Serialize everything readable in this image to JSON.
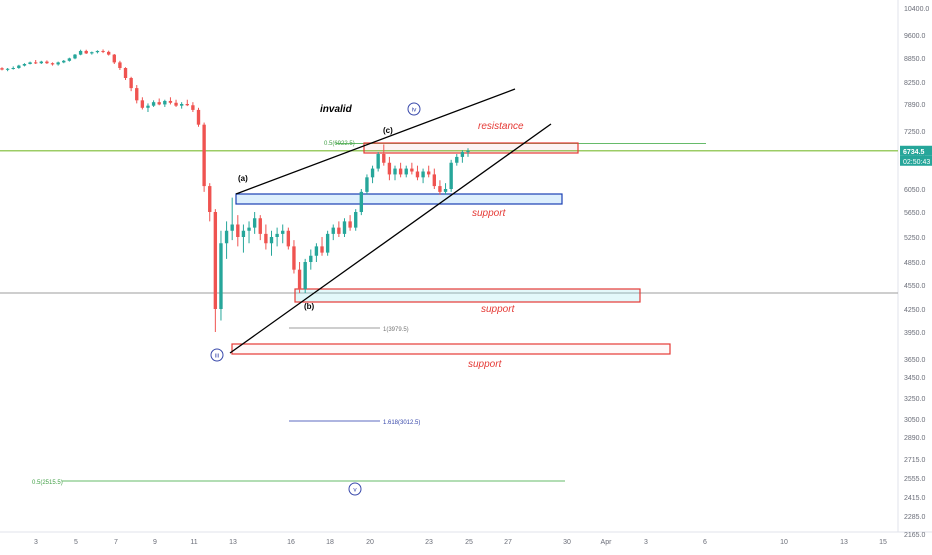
{
  "chart_data": {
    "type": "candlestick",
    "y_axis": {
      "ticks": [
        "10400.0",
        "9600.0",
        "8850.0",
        "8250.0",
        "7890.0",
        "7250.0",
        "6650.0",
        "6050.0",
        "5650.0",
        "5250.0",
        "4850.0",
        "4550.0",
        "4250.0",
        "3950.0",
        "3650.0",
        "3450.0",
        "3250.0",
        "3050.0",
        "2890.0",
        "2715.0",
        "2555.0",
        "2415.0",
        "2285.0",
        "2165.0"
      ]
    },
    "x_axis": {
      "ticks": [
        "3",
        "5",
        "7",
        "9",
        "11",
        "13",
        "16",
        "18",
        "20",
        "23",
        "25",
        "27",
        "30",
        "Apr",
        "3",
        "6",
        "10",
        "13",
        "15"
      ]
    },
    "current_price": {
      "value": "6734.5",
      "time": "02:50:43",
      "color": "#26a69a"
    },
    "candles": [
      [
        8595,
        8620,
        8540,
        8560
      ],
      [
        8560,
        8600,
        8520,
        8580
      ],
      [
        8580,
        8640,
        8560,
        8600
      ],
      [
        8600,
        8680,
        8580,
        8660
      ],
      [
        8660,
        8720,
        8640,
        8700
      ],
      [
        8700,
        8760,
        8690,
        8740
      ],
      [
        8740,
        8800,
        8700,
        8720
      ],
      [
        8720,
        8780,
        8700,
        8760
      ],
      [
        8760,
        8790,
        8700,
        8720
      ],
      [
        8720,
        8740,
        8660,
        8690
      ],
      [
        8690,
        8760,
        8660,
        8740
      ],
      [
        8740,
        8800,
        8720,
        8780
      ],
      [
        8780,
        8860,
        8760,
        8840
      ],
      [
        8840,
        8980,
        8820,
        8960
      ],
      [
        8960,
        9120,
        8940,
        9080
      ],
      [
        9080,
        9120,
        8980,
        9000
      ],
      [
        9000,
        9060,
        8960,
        9040
      ],
      [
        9040,
        9100,
        9000,
        9080
      ],
      [
        9080,
        9130,
        9010,
        9050
      ],
      [
        9050,
        9090,
        8930,
        8960
      ],
      [
        8960,
        8980,
        8700,
        8740
      ],
      [
        8740,
        8780,
        8550,
        8600
      ],
      [
        8600,
        8620,
        8300,
        8350
      ],
      [
        8350,
        8380,
        8100,
        8150
      ],
      [
        8150,
        8200,
        7900,
        7950
      ],
      [
        7950,
        8000,
        7760,
        7800
      ],
      [
        7800,
        7900,
        7700,
        7850
      ],
      [
        7850,
        7950,
        7820,
        7920
      ],
      [
        7920,
        7980,
        7860,
        7880
      ],
      [
        7880,
        7960,
        7820,
        7940
      ],
      [
        7940,
        8000,
        7880,
        7910
      ],
      [
        7910,
        7960,
        7820,
        7850
      ],
      [
        7850,
        7920,
        7780,
        7890
      ],
      [
        7890,
        7960,
        7840,
        7860
      ],
      [
        7860,
        7920,
        7700,
        7750
      ],
      [
        7750,
        7800,
        7350,
        7400
      ],
      [
        7400,
        7450,
        6000,
        6100
      ],
      [
        6100,
        6150,
        5500,
        5650
      ],
      [
        5650,
        5700,
        3950,
        4250
      ],
      [
        4250,
        5350,
        4100,
        5150
      ],
      [
        5150,
        5500,
        4900,
        5350
      ],
      [
        5350,
        5900,
        5200,
        5450
      ],
      [
        5450,
        5600,
        5100,
        5250
      ],
      [
        5250,
        5450,
        5000,
        5350
      ],
      [
        5350,
        5500,
        5150,
        5400
      ],
      [
        5400,
        5650,
        5300,
        5550
      ],
      [
        5550,
        5600,
        5200,
        5300
      ],
      [
        5300,
        5450,
        5050,
        5150
      ],
      [
        5150,
        5350,
        4950,
        5250
      ],
      [
        5250,
        5400,
        5100,
        5300
      ],
      [
        5300,
        5450,
        5150,
        5350
      ],
      [
        5350,
        5400,
        5050,
        5100
      ],
      [
        5100,
        5200,
        4700,
        4750
      ],
      [
        4750,
        4850,
        4450,
        4500
      ],
      [
        4500,
        4900,
        4450,
        4850
      ],
      [
        4850,
        5050,
        4750,
        4950
      ],
      [
        4950,
        5150,
        4850,
        5100
      ],
      [
        5100,
        5250,
        4950,
        5000
      ],
      [
        5000,
        5350,
        4950,
        5300
      ],
      [
        5300,
        5450,
        5200,
        5400
      ],
      [
        5400,
        5500,
        5250,
        5300
      ],
      [
        5300,
        5550,
        5250,
        5500
      ],
      [
        5500,
        5600,
        5350,
        5400
      ],
      [
        5400,
        5700,
        5350,
        5650
      ],
      [
        5650,
        6050,
        5600,
        6000
      ],
      [
        6000,
        6300,
        5950,
        6250
      ],
      [
        6250,
        6450,
        6150,
        6400
      ],
      [
        6400,
        6700,
        6350,
        6650
      ],
      [
        6650,
        6900,
        6450,
        6500
      ],
      [
        6500,
        6600,
        6200,
        6300
      ],
      [
        6300,
        6450,
        6200,
        6400
      ],
      [
        6400,
        6500,
        6250,
        6300
      ],
      [
        6300,
        6450,
        6250,
        6400
      ],
      [
        6400,
        6500,
        6300,
        6350
      ],
      [
        6350,
        6450,
        6200,
        6250
      ],
      [
        6250,
        6400,
        6150,
        6350
      ],
      [
        6350,
        6450,
        6250,
        6300
      ],
      [
        6300,
        6400,
        6050,
        6100
      ],
      [
        6100,
        6200,
        5950,
        6000
      ],
      [
        6000,
        6150,
        5950,
        6050
      ],
      [
        6050,
        6550,
        6000,
        6500
      ],
      [
        6500,
        6650,
        6450,
        6600
      ],
      [
        6600,
        6750,
        6500,
        6700
      ],
      [
        6700,
        6800,
        6600,
        6734.5
      ]
    ],
    "zones": [
      {
        "name": "resistance",
        "color": "#e53935",
        "fill": "rgba(229,57,53,0.06)",
        "y_top": 6800,
        "y_bottom": 6690
      },
      {
        "name": "blue-support",
        "color": "#1a3fb3",
        "fill": "rgba(66,165,245,0.18)",
        "y_top": 5950,
        "y_bottom": 5780
      },
      {
        "name": "support-mid",
        "color": "#e53935",
        "fill": "rgba(128,222,234,0.22)",
        "y_top": 4560,
        "y_bottom": 4360
      },
      {
        "name": "support-low",
        "color": "#e53935",
        "fill": "rgba(229,57,53,0.03)",
        "y_top": 3780,
        "y_bottom": 3640
      }
    ],
    "horizontal_lines": [
      {
        "name": "fib-0.5-upper",
        "value": 6922.5,
        "color": "#66bb6a"
      },
      {
        "name": "green-top-line",
        "value": 6734.5,
        "color": "#9ccc65"
      },
      {
        "name": "gray-price-line",
        "value": 4420,
        "color": "#9e9e9e"
      },
      {
        "name": "fib-0.5-lower",
        "value": 2515.5,
        "color": "#66bb6a"
      },
      {
        "name": "fib-1",
        "value": 3979.5,
        "color": "#9e9e9e"
      },
      {
        "name": "fib-1.618",
        "value": 3012.5,
        "color": "#5c6bc0"
      }
    ],
    "labels": {
      "invalid": "invalid",
      "resistance": "resistance",
      "support_blue": "support",
      "support_mid": "support",
      "support_low": "support",
      "wave_a": "(a)",
      "wave_b": "(b)",
      "wave_c": "(c)",
      "wave_iv": "iv",
      "wave_iii": "iii",
      "wave_v": "v",
      "fib_05_upper": "0.5(6922.5)",
      "fib_1": "1(3979.5)",
      "fib_1618": "1.618(3012.5)",
      "fib_05_lower": "0.5(2515.5)"
    }
  }
}
